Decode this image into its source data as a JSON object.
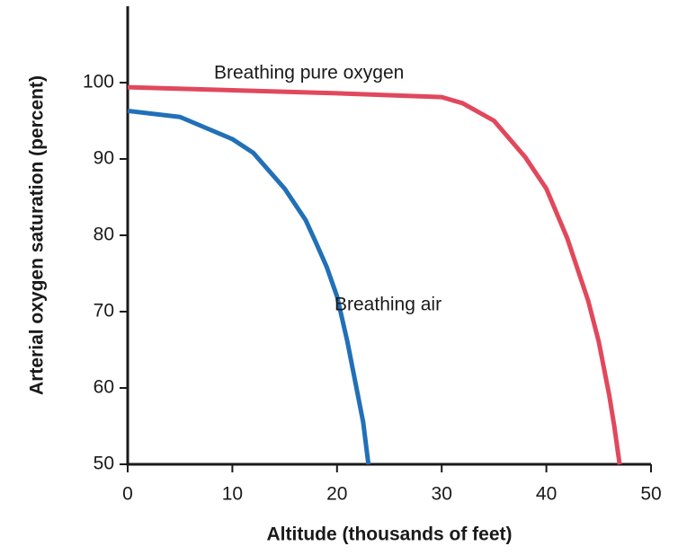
{
  "chart_data": {
    "type": "line",
    "x_label": "Altitude (thousands of feet)",
    "y_label": "Arterial oxygen saturation (percent)",
    "xlim": [
      0,
      50
    ],
    "ylim": [
      50,
      110
    ],
    "xticks": [
      0,
      10,
      20,
      30,
      40,
      50
    ],
    "yticks": [
      50,
      60,
      70,
      80,
      90,
      100
    ],
    "grid": false,
    "series": [
      {
        "name": "Breathing air",
        "color": "#2170b8",
        "x": [
          0,
          5,
          10,
          12,
          15,
          17,
          18,
          19,
          20,
          21,
          22,
          22.5,
          23
        ],
        "values": [
          96.3,
          95.5,
          92.6,
          90.8,
          86.1,
          82,
          79,
          75.9,
          72,
          66,
          59,
          55.5,
          50
        ]
      },
      {
        "name": "Breathing pure oxygen",
        "color": "#e1485c",
        "x": [
          0,
          10,
          20,
          30,
          32,
          35,
          38,
          40,
          42,
          44,
          45,
          46,
          46.5,
          47
        ],
        "values": [
          99.4,
          99,
          98.6,
          98.1,
          97.3,
          95,
          90.2,
          86.1,
          79.6,
          71.4,
          66.1,
          59.1,
          54.9,
          50
        ]
      }
    ]
  }
}
